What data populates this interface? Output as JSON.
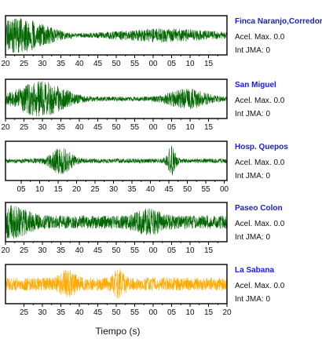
{
  "chart_data": {
    "type": "line",
    "xlabel": "Tiempo (s)",
    "panels": [
      {
        "station": "Finca Naranjo,Corredores",
        "accel_label": "Acel. Max. 0.0",
        "int_label": "Int JMA: 0",
        "color": "#006600",
        "tick_labels": [
          "20",
          "25",
          "30",
          "35",
          "40",
          "45",
          "50",
          "55",
          "00",
          "05",
          "10",
          "15"
        ]
      },
      {
        "station": "San Miguel",
        "accel_label": "Acel. Max. 0.0",
        "int_label": "Int JMA: 0",
        "color": "#006600",
        "tick_labels": [
          "20",
          "25",
          "30",
          "35",
          "40",
          "45",
          "50",
          "55",
          "00",
          "05",
          "10",
          "15"
        ]
      },
      {
        "station": "Hosp. Quepos",
        "accel_label": "Acel. Max. 0.0",
        "int_label": "Int JMA: 0",
        "color": "#006600",
        "tick_labels": [
          "05",
          "10",
          "15",
          "20",
          "25",
          "30",
          "35",
          "40",
          "45",
          "50",
          "55",
          "00"
        ]
      },
      {
        "station": "Paseo Colon",
        "accel_label": "Acel. Max. 0.0",
        "int_label": "Int JMA: 0",
        "color": "#006600",
        "tick_labels": [
          "20",
          "25",
          "30",
          "35",
          "40",
          "45",
          "50",
          "55",
          "00",
          "05",
          "10",
          "15"
        ]
      },
      {
        "station": "La Sabana",
        "accel_label": "Acel. Max. 0.0",
        "int_label": "Int JMA: 0",
        "color": "#ffaa00",
        "tick_labels": [
          "25",
          "30",
          "35",
          "40",
          "45",
          "50",
          "55",
          "00",
          "05",
          "10",
          "15",
          "20"
        ]
      }
    ]
  }
}
